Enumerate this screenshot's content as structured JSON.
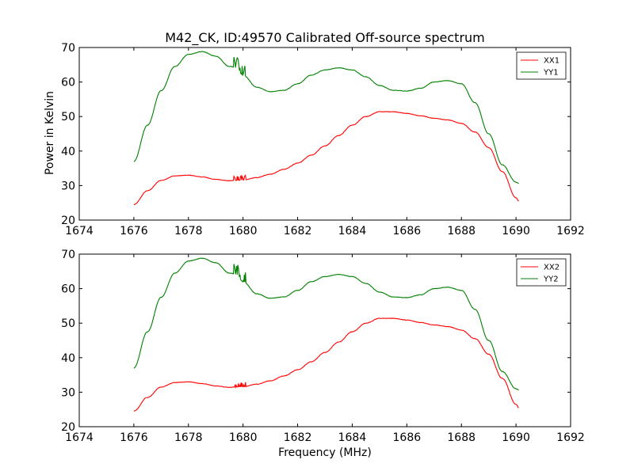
{
  "chart_data": {
    "type": "line",
    "title": "M42_CK, ID:49570 Calibrated Off-source spectrum",
    "xlabel": "Frequency (MHz)",
    "ylabel": "Power in Kelvin",
    "colors": {
      "xx": "#ff0000",
      "yy": "#008000"
    },
    "x": [
      1676,
      1676.5,
      1677,
      1677.5,
      1678,
      1678.5,
      1679,
      1679.5,
      1679.75,
      1680,
      1680.5,
      1681,
      1681.5,
      1682,
      1682.5,
      1683,
      1683.5,
      1684,
      1684.5,
      1685,
      1685.5,
      1686,
      1686.5,
      1687,
      1687.5,
      1688,
      1688.5,
      1689,
      1689.5,
      1690,
      1690.1
    ],
    "panels": [
      {
        "xlim": [
          1674,
          1692
        ],
        "ylim": [
          20,
          70
        ],
        "xticks": [
          1674,
          1676,
          1678,
          1680,
          1682,
          1684,
          1686,
          1688,
          1690,
          1692
        ],
        "yticks": [
          20,
          30,
          40,
          50,
          60,
          70
        ],
        "legend_position": "top-right",
        "series": [
          {
            "name": "XX1",
            "color_key": "xx",
            "values": [
              24.5,
              28.5,
              31.5,
              32.8,
              33.0,
              32.5,
              31.8,
              31.4,
              31.5,
              31.6,
              32.3,
              33.3,
              34.7,
              36.5,
              38.8,
              41.5,
              44.5,
              47.5,
              50.0,
              51.4,
              51.4,
              50.9,
              50.2,
              49.5,
              49.0,
              48.0,
              45.5,
              41.0,
              34.0,
              26.5,
              25.5
            ]
          },
          {
            "name": "YY1",
            "color_key": "yy",
            "values": [
              37.0,
              47.5,
              57.5,
              64.5,
              68.0,
              68.8,
              67.5,
              64.5,
              64.2,
              62.0,
              58.5,
              57.2,
              57.6,
              59.5,
              62.0,
              63.5,
              64.1,
              63.5,
              61.5,
              59.0,
              57.6,
              57.4,
              58.2,
              60.0,
              60.4,
              59.5,
              54.0,
              45.0,
              36.0,
              31.0,
              30.6
            ]
          }
        ]
      },
      {
        "xlim": [
          1674,
          1692
        ],
        "ylim": [
          20,
          70
        ],
        "xticks": [
          1674,
          1676,
          1678,
          1680,
          1682,
          1684,
          1686,
          1688,
          1690,
          1692
        ],
        "yticks": [
          20,
          30,
          40,
          50,
          60,
          70
        ],
        "legend_position": "top-right",
        "series": [
          {
            "name": "XX2",
            "color_key": "xx",
            "values": [
              24.5,
              28.5,
              31.5,
              32.8,
              33.0,
              32.5,
              31.8,
              31.4,
              31.5,
              31.6,
              32.3,
              33.3,
              34.7,
              36.5,
              38.8,
              41.5,
              44.5,
              47.5,
              50.0,
              51.4,
              51.4,
              50.9,
              50.2,
              49.5,
              49.0,
              48.0,
              45.5,
              41.0,
              34.0,
              26.5,
              25.5
            ]
          },
          {
            "name": "YY2",
            "color_key": "yy",
            "values": [
              37.0,
              47.5,
              57.5,
              64.5,
              68.0,
              68.8,
              67.5,
              64.5,
              64.2,
              62.0,
              58.5,
              57.2,
              57.6,
              59.5,
              62.0,
              63.5,
              64.1,
              63.5,
              61.5,
              59.0,
              57.6,
              57.4,
              58.2,
              60.0,
              60.4,
              59.5,
              54.0,
              45.0,
              36.0,
              31.0,
              30.6
            ]
          }
        ]
      }
    ]
  }
}
